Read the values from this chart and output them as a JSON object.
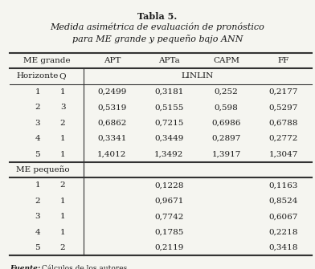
{
  "title_bold": "Tabla 5.",
  "title_italic": " Medida asimétrica de evaluación de pronóstico\npara ME grande y pequeño bajo ANN",
  "col_headers": [
    "ME grande",
    "",
    "APT",
    "APTa",
    "CAPM",
    "FF"
  ],
  "sub_headers": [
    "Horizonte",
    "Q",
    "LINLIN"
  ],
  "me_grande_rows": [
    [
      "1",
      "1",
      "0,2499",
      "0,3181",
      "0,252",
      "0,2177"
    ],
    [
      "2",
      "3",
      "0,5319",
      "0,5155",
      "0,598",
      "0,5297"
    ],
    [
      "3",
      "2",
      "0,6862",
      "0,7215",
      "0,6986",
      "0,6788"
    ],
    [
      "4",
      "1",
      "0,3341",
      "0,3449",
      "0,2897",
      "0,2772"
    ],
    [
      "5",
      "1",
      "1,4012",
      "1,3492",
      "1,3917",
      "1,3047"
    ]
  ],
  "me_pequeno_label": "ME pequeño",
  "me_pequeno_rows": [
    [
      "1",
      "2",
      "",
      "0,1228",
      "",
      "0,1163"
    ],
    [
      "2",
      "1",
      "",
      "0,9671",
      "",
      "0,8524"
    ],
    [
      "3",
      "1",
      "",
      "0,7742",
      "",
      "0,6067"
    ],
    [
      "4",
      "1",
      "",
      "0,1785",
      "",
      "0,2218"
    ],
    [
      "5",
      "2",
      "",
      "0,2119",
      "",
      "0,3418"
    ]
  ],
  "footnote_bold": "Fuente:",
  "footnote_text": " Cálculos de los autores.",
  "bg_color": "#f5f5f0",
  "text_color": "#1a1a1a"
}
